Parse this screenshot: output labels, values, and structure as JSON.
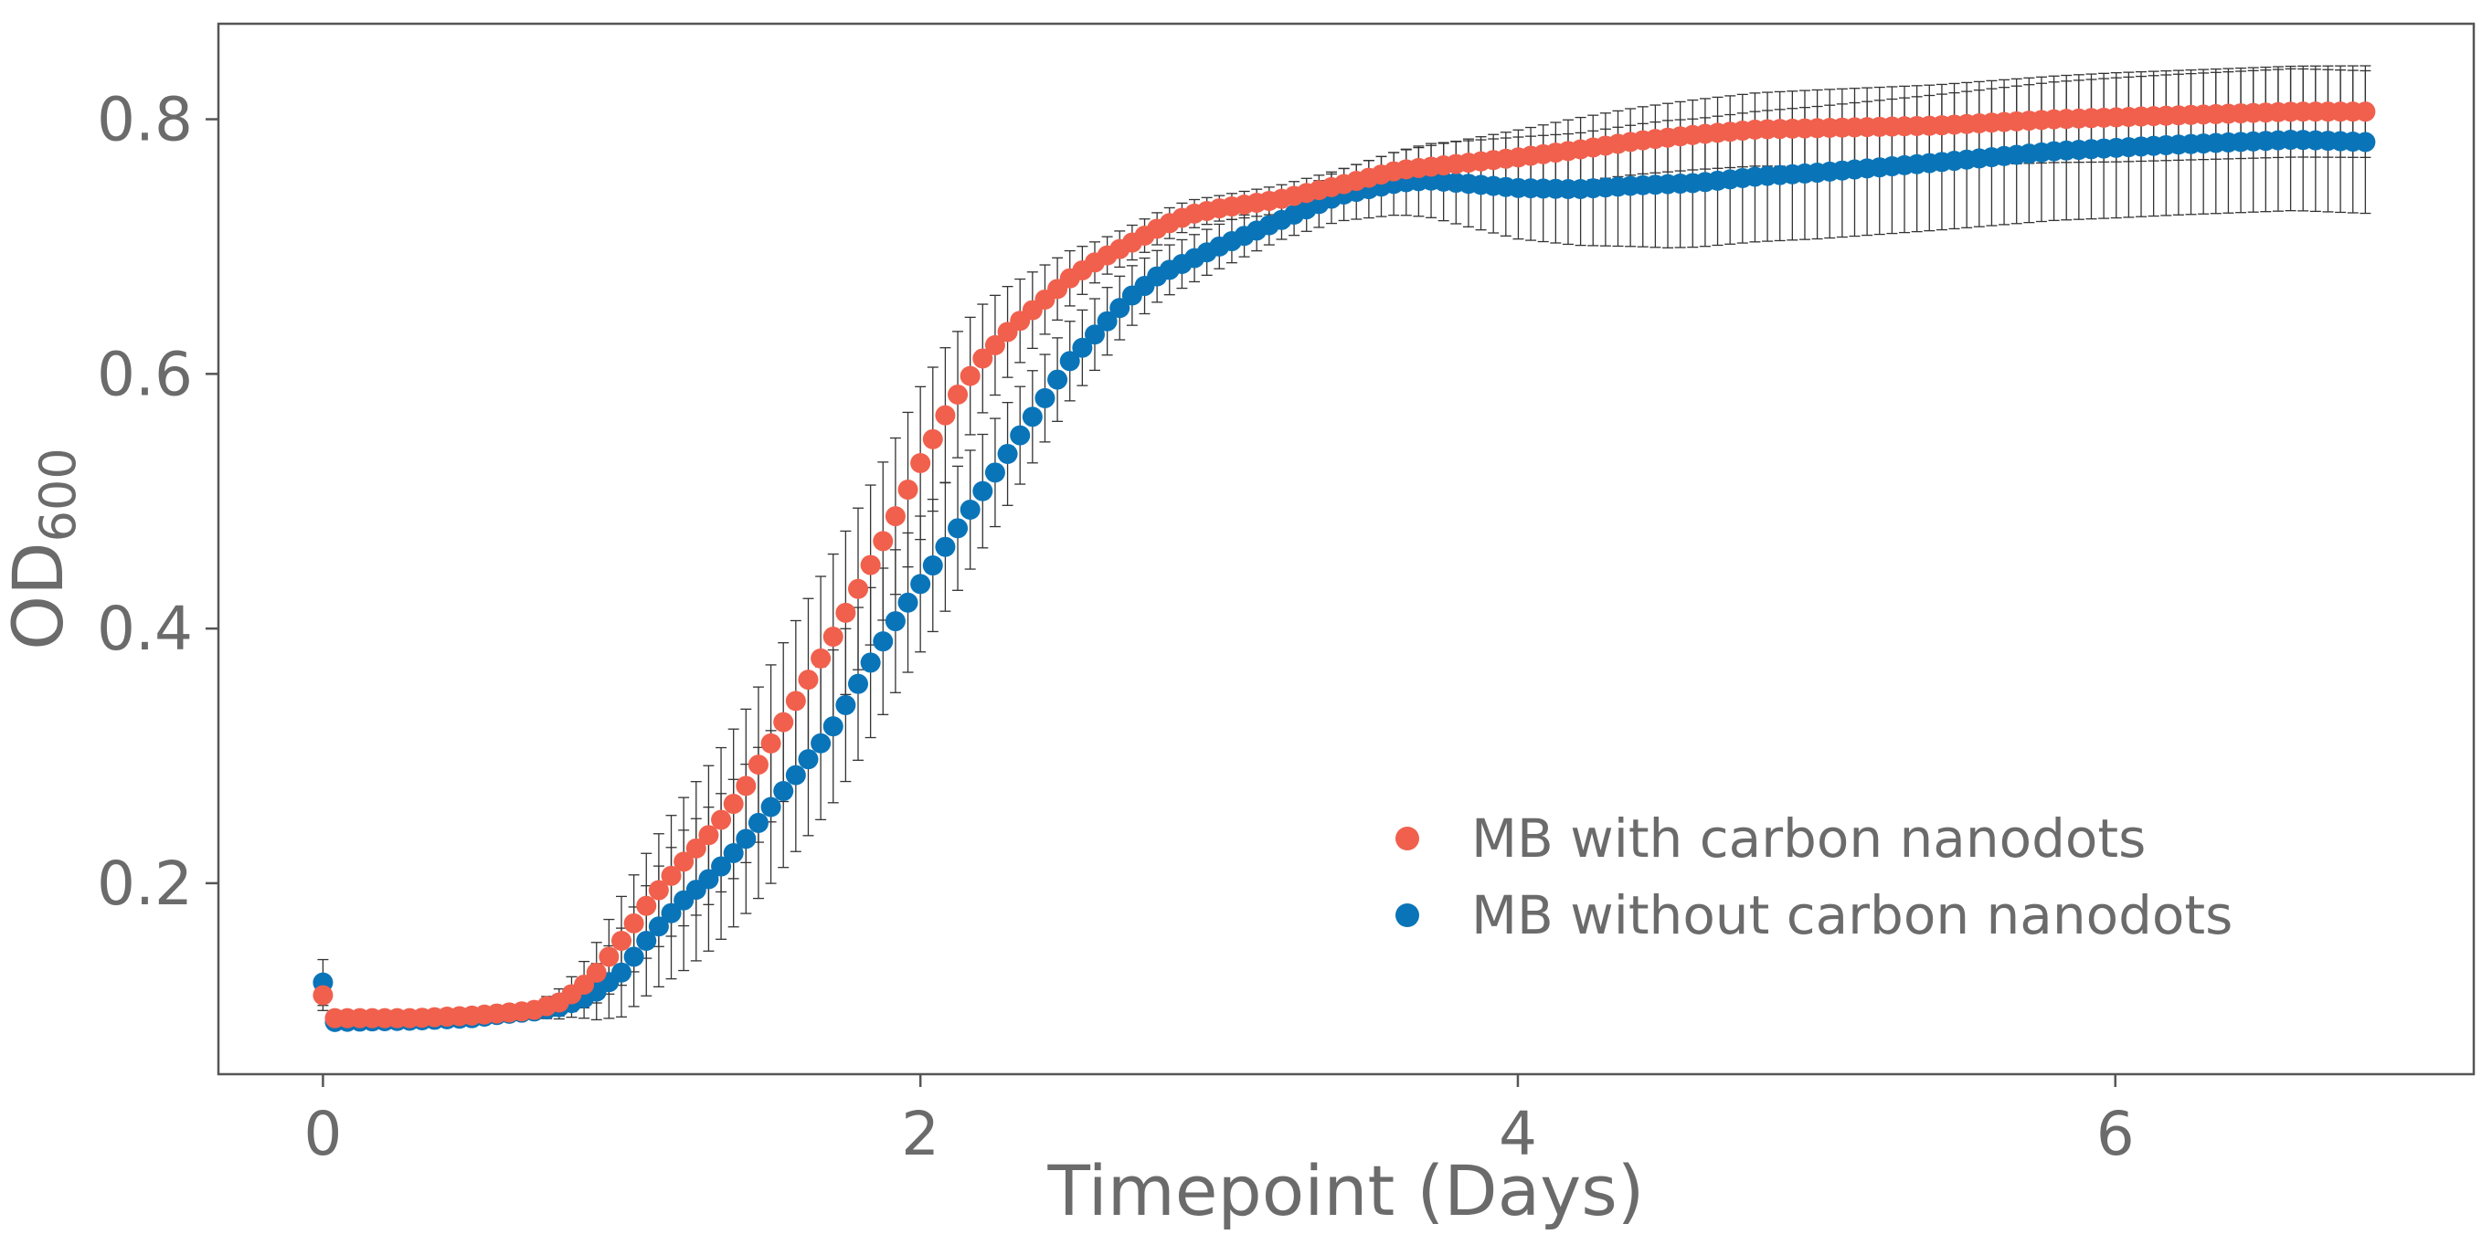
{
  "chart_data": {
    "type": "scatter",
    "title": "",
    "xlabel": "Timepoint (Days)",
    "ylabel": {
      "main": "OD",
      "sub": "600"
    },
    "xlim": [
      -0.35,
      7.2
    ],
    "ylim": [
      0.05,
      0.875
    ],
    "xticks": [
      0,
      2,
      4,
      6
    ],
    "xtick_labels": [
      "0",
      "2",
      "4",
      "6"
    ],
    "yticks": [
      0.2,
      0.4,
      0.6,
      0.8
    ],
    "ytick_labels": [
      "0.2",
      "0.4",
      "0.6",
      "0.8"
    ],
    "grid": false,
    "legend_position": "lower-right",
    "error_bar_color": "#333333",
    "series": [
      {
        "name": "MB with carbon nanodots",
        "color": "#f0604d",
        "start_point": {
          "x": 0,
          "y": 0.112,
          "err": 0.012
        },
        "time_step_days": 0.0417,
        "knots": [
          [
            0.04,
            0.094
          ],
          [
            0.3,
            0.094
          ],
          [
            0.5,
            0.096
          ],
          [
            0.7,
            0.1
          ],
          [
            0.8,
            0.107
          ],
          [
            0.9,
            0.125
          ],
          [
            1.0,
            0.155
          ],
          [
            1.1,
            0.188
          ],
          [
            1.2,
            0.215
          ],
          [
            1.3,
            0.24
          ],
          [
            1.4,
            0.27
          ],
          [
            1.5,
            0.31
          ],
          [
            1.6,
            0.35
          ],
          [
            1.7,
            0.39
          ],
          [
            1.8,
            0.435
          ],
          [
            1.9,
            0.48
          ],
          [
            2.0,
            0.53
          ],
          [
            2.1,
            0.575
          ],
          [
            2.2,
            0.61
          ],
          [
            2.3,
            0.635
          ],
          [
            2.4,
            0.655
          ],
          [
            2.5,
            0.675
          ],
          [
            2.6,
            0.69
          ],
          [
            2.7,
            0.702
          ],
          [
            2.8,
            0.715
          ],
          [
            2.9,
            0.725
          ],
          [
            3.0,
            0.73
          ],
          [
            3.2,
            0.737
          ],
          [
            3.4,
            0.748
          ],
          [
            3.6,
            0.76
          ],
          [
            3.8,
            0.765
          ],
          [
            4.0,
            0.77
          ],
          [
            4.2,
            0.776
          ],
          [
            4.4,
            0.783
          ],
          [
            4.6,
            0.788
          ],
          [
            4.8,
            0.792
          ],
          [
            5.0,
            0.793
          ],
          [
            5.4,
            0.795
          ],
          [
            5.8,
            0.8
          ],
          [
            6.2,
            0.803
          ],
          [
            6.6,
            0.806
          ],
          [
            6.85,
            0.806
          ]
        ],
        "error_knots": [
          [
            0.04,
            0.003
          ],
          [
            0.7,
            0.004
          ],
          [
            0.85,
            0.015
          ],
          [
            1.0,
            0.035
          ],
          [
            1.2,
            0.05
          ],
          [
            1.4,
            0.06
          ],
          [
            1.7,
            0.065
          ],
          [
            2.0,
            0.06
          ],
          [
            2.3,
            0.035
          ],
          [
            2.6,
            0.015
          ],
          [
            3.0,
            0.01
          ],
          [
            3.4,
            0.012
          ],
          [
            3.8,
            0.018
          ],
          [
            4.2,
            0.025
          ],
          [
            5.0,
            0.03
          ],
          [
            6.0,
            0.035
          ],
          [
            6.85,
            0.036
          ]
        ]
      },
      {
        "name": "MB without carbon nanodots",
        "color": "#0a74b8",
        "start_point": {
          "x": 0,
          "y": 0.122,
          "err": 0.018
        },
        "time_step_days": 0.0417,
        "knots": [
          [
            0.04,
            0.091
          ],
          [
            0.3,
            0.092
          ],
          [
            0.5,
            0.094
          ],
          [
            0.6,
            0.097
          ],
          [
            0.7,
            0.099
          ],
          [
            0.8,
            0.103
          ],
          [
            0.9,
            0.112
          ],
          [
            1.0,
            0.13
          ],
          [
            1.1,
            0.16
          ],
          [
            1.2,
            0.185
          ],
          [
            1.3,
            0.205
          ],
          [
            1.4,
            0.23
          ],
          [
            1.5,
            0.26
          ],
          [
            1.6,
            0.29
          ],
          [
            1.7,
            0.32
          ],
          [
            1.8,
            0.36
          ],
          [
            1.9,
            0.4
          ],
          [
            2.0,
            0.435
          ],
          [
            2.1,
            0.47
          ],
          [
            2.2,
            0.505
          ],
          [
            2.3,
            0.54
          ],
          [
            2.4,
            0.575
          ],
          [
            2.5,
            0.61
          ],
          [
            2.6,
            0.635
          ],
          [
            2.7,
            0.66
          ],
          [
            2.8,
            0.678
          ],
          [
            3.0,
            0.7
          ],
          [
            3.2,
            0.72
          ],
          [
            3.4,
            0.74
          ],
          [
            3.6,
            0.75
          ],
          [
            3.7,
            0.752
          ],
          [
            3.8,
            0.75
          ],
          [
            4.0,
            0.746
          ],
          [
            4.2,
            0.745
          ],
          [
            4.4,
            0.748
          ],
          [
            4.6,
            0.75
          ],
          [
            4.8,
            0.755
          ],
          [
            5.0,
            0.758
          ],
          [
            5.4,
            0.766
          ],
          [
            5.8,
            0.775
          ],
          [
            6.2,
            0.78
          ],
          [
            6.6,
            0.784
          ],
          [
            6.85,
            0.782
          ]
        ],
        "error_knots": [
          [
            0.04,
            0.003
          ],
          [
            0.7,
            0.005
          ],
          [
            0.85,
            0.012
          ],
          [
            1.0,
            0.035
          ],
          [
            1.2,
            0.055
          ],
          [
            1.5,
            0.06
          ],
          [
            1.8,
            0.06
          ],
          [
            2.1,
            0.05
          ],
          [
            2.4,
            0.035
          ],
          [
            2.8,
            0.02
          ],
          [
            3.2,
            0.015
          ],
          [
            3.6,
            0.025
          ],
          [
            4.0,
            0.04
          ],
          [
            4.5,
            0.05
          ],
          [
            5.0,
            0.052
          ],
          [
            6.0,
            0.055
          ],
          [
            6.85,
            0.056
          ]
        ]
      }
    ]
  }
}
